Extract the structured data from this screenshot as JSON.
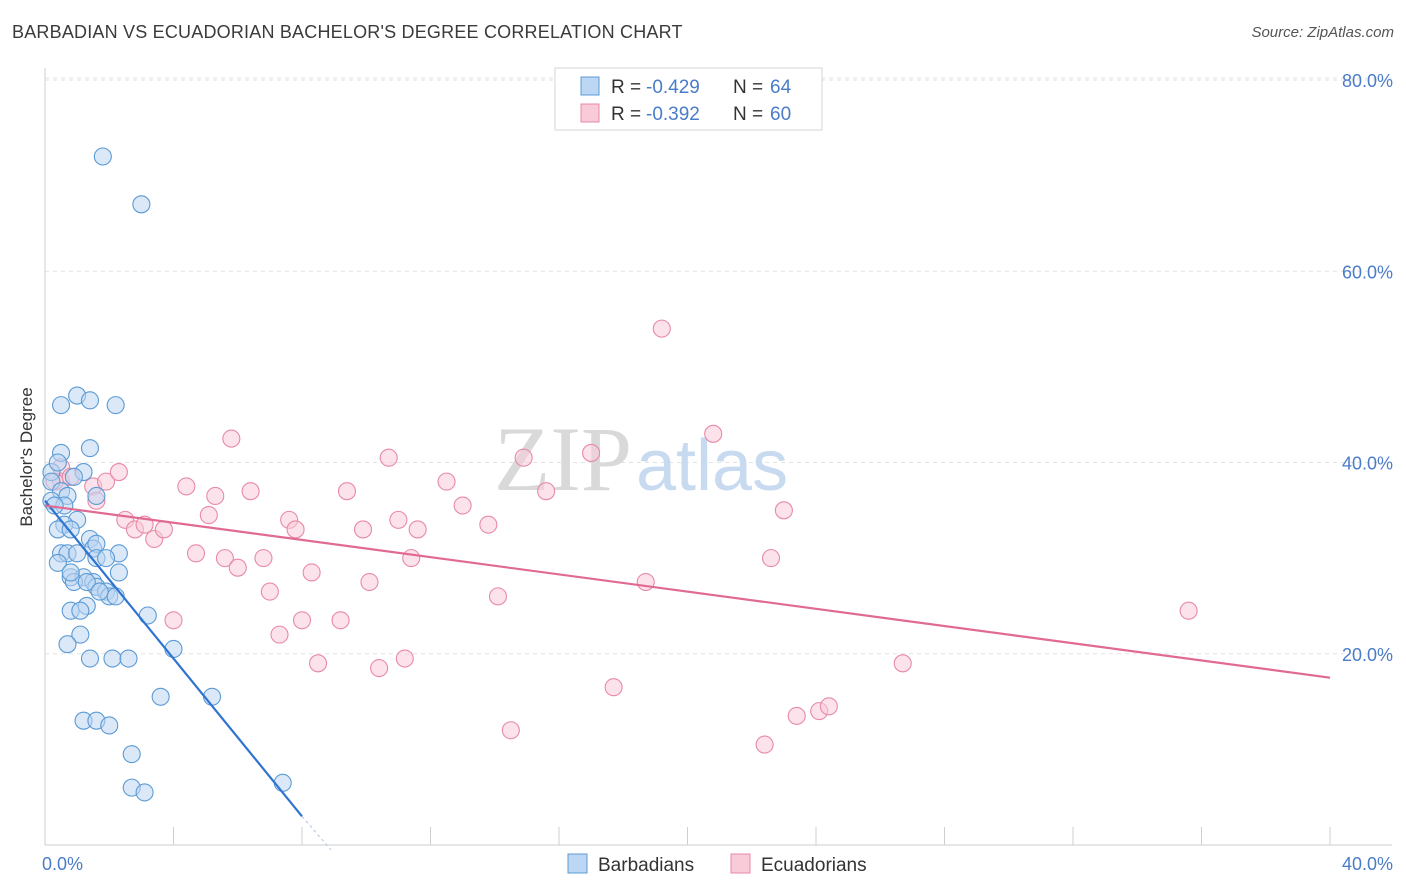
{
  "title": "BARBADIAN VS ECUADORIAN BACHELOR'S DEGREE CORRELATION CHART",
  "source": "Source: ZipAtlas.com",
  "watermark": {
    "zip": "ZIP",
    "atlas": "atlas"
  },
  "colors": {
    "blue": "#5b9bd5",
    "blue_fill": "#bcd6f3",
    "blue_line": "#2f74d0",
    "pink": "#e88aa6",
    "pink_fill": "#f9cbd9",
    "pink_line": "#e06a92",
    "axis_text": "#4a7cc9"
  },
  "chart_data": {
    "type": "scatter",
    "title": "BARBADIAN VS ECUADORIAN BACHELOR'S DEGREE CORRELATION CHART",
    "xlabel": "",
    "ylabel": "Bachelor's Degree",
    "xlim": [
      0,
      40
    ],
    "ylim": [
      0,
      80
    ],
    "x_tick_labels": [
      "0.0%",
      "40.0%"
    ],
    "y_tick_labels": [
      "20.0%",
      "40.0%",
      "60.0%",
      "80.0%"
    ],
    "y_ticks": [
      20,
      40,
      60,
      80
    ],
    "legend_position": "bottom-center",
    "stats": [
      {
        "r_label": "R =",
        "r_value": "-0.429",
        "n_label": "N =",
        "n_value": "64"
      },
      {
        "r_label": "R =",
        "r_value": "-0.392",
        "n_label": "N =",
        "n_value": "60"
      }
    ],
    "series": [
      {
        "name": "Barbadians",
        "trend": {
          "x": [
            0,
            8.0
          ],
          "y": [
            36,
            3
          ]
        },
        "trend_dashed": {
          "x": [
            8.0,
            8.9
          ],
          "y": [
            3,
            -0.5
          ]
        },
        "points": [
          [
            1.8,
            72
          ],
          [
            3.0,
            67
          ],
          [
            0.5,
            46
          ],
          [
            1.0,
            47
          ],
          [
            1.4,
            46.5
          ],
          [
            2.2,
            46
          ],
          [
            0.5,
            41
          ],
          [
            1.4,
            41.5
          ],
          [
            0.2,
            39
          ],
          [
            0.4,
            40
          ],
          [
            1.2,
            39
          ],
          [
            0.2,
            38
          ],
          [
            0.5,
            37
          ],
          [
            0.7,
            36.5
          ],
          [
            0.2,
            36
          ],
          [
            0.6,
            35.5
          ],
          [
            1.6,
            36.5
          ],
          [
            0.3,
            35.5
          ],
          [
            1.0,
            34
          ],
          [
            0.6,
            33.5
          ],
          [
            0.4,
            33
          ],
          [
            0.8,
            33
          ],
          [
            1.4,
            32
          ],
          [
            1.5,
            31
          ],
          [
            1.6,
            31.5
          ],
          [
            0.5,
            30.5
          ],
          [
            0.7,
            30.5
          ],
          [
            1.6,
            30
          ],
          [
            2.3,
            30.5
          ],
          [
            0.4,
            29.5
          ],
          [
            2.3,
            28.5
          ],
          [
            0.8,
            28
          ],
          [
            1.2,
            28
          ],
          [
            1.5,
            27.5
          ],
          [
            0.9,
            27.5
          ],
          [
            1.6,
            27
          ],
          [
            1.9,
            26.5
          ],
          [
            2.0,
            26
          ],
          [
            2.2,
            26
          ],
          [
            0.8,
            24.5
          ],
          [
            1.3,
            25
          ],
          [
            1.1,
            24.5
          ],
          [
            3.2,
            24
          ],
          [
            1.1,
            22
          ],
          [
            0.7,
            21
          ],
          [
            4.0,
            20.5
          ],
          [
            1.4,
            19.5
          ],
          [
            2.1,
            19.5
          ],
          [
            2.6,
            19.5
          ],
          [
            3.6,
            15.5
          ],
          [
            5.2,
            15.5
          ],
          [
            1.2,
            13
          ],
          [
            1.6,
            13
          ],
          [
            2.0,
            12.5
          ],
          [
            2.7,
            9.5
          ],
          [
            2.7,
            6
          ],
          [
            3.1,
            5.5
          ],
          [
            7.4,
            6.5
          ],
          [
            1.0,
            30.5
          ],
          [
            1.9,
            30
          ],
          [
            0.8,
            28.5
          ],
          [
            1.3,
            27.5
          ],
          [
            1.7,
            26.5
          ],
          [
            0.9,
            38.5
          ]
        ]
      },
      {
        "name": "Ecuadorians",
        "trend": {
          "x": [
            0,
            40
          ],
          "y": [
            35.5,
            17.5
          ]
        },
        "points": [
          [
            0.5,
            39.5
          ],
          [
            0.5,
            38
          ],
          [
            0.8,
            38.5
          ],
          [
            1.5,
            37.5
          ],
          [
            1.9,
            38
          ],
          [
            2.3,
            39
          ],
          [
            0.3,
            38
          ],
          [
            1.6,
            36
          ],
          [
            2.5,
            34
          ],
          [
            2.8,
            33
          ],
          [
            3.1,
            33.5
          ],
          [
            3.4,
            32
          ],
          [
            3.7,
            33
          ],
          [
            4.4,
            37.5
          ],
          [
            5.1,
            34.5
          ],
          [
            5.3,
            36.5
          ],
          [
            5.8,
            42.5
          ],
          [
            6.4,
            37
          ],
          [
            4.7,
            30.5
          ],
          [
            5.6,
            30
          ],
          [
            6.0,
            29
          ],
          [
            6.8,
            30
          ],
          [
            7.0,
            26.5
          ],
          [
            7.6,
            34
          ],
          [
            7.8,
            33
          ],
          [
            8.3,
            28.5
          ],
          [
            7.3,
            22
          ],
          [
            8.0,
            23.5
          ],
          [
            8.5,
            19
          ],
          [
            9.2,
            23.5
          ],
          [
            9.4,
            37
          ],
          [
            9.9,
            33
          ],
          [
            10.1,
            27.5
          ],
          [
            10.4,
            18.5
          ],
          [
            10.7,
            40.5
          ],
          [
            11.0,
            34
          ],
          [
            11.4,
            30
          ],
          [
            11.6,
            33
          ],
          [
            11.2,
            19.5
          ],
          [
            12.5,
            38
          ],
          [
            13.0,
            35.5
          ],
          [
            13.8,
            33.5
          ],
          [
            14.1,
            26
          ],
          [
            14.5,
            12
          ],
          [
            14.9,
            40.5
          ],
          [
            15.6,
            37
          ],
          [
            17.0,
            41
          ],
          [
            17.7,
            16.5
          ],
          [
            18.7,
            27.5
          ],
          [
            19.2,
            54
          ],
          [
            20.8,
            43
          ],
          [
            22.6,
            30
          ],
          [
            22.4,
            10.5
          ],
          [
            23.0,
            35
          ],
          [
            23.4,
            13.5
          ],
          [
            24.1,
            14
          ],
          [
            24.4,
            14.5
          ],
          [
            26.7,
            19
          ],
          [
            35.6,
            24.5
          ],
          [
            4.0,
            23.5
          ]
        ]
      }
    ]
  }
}
